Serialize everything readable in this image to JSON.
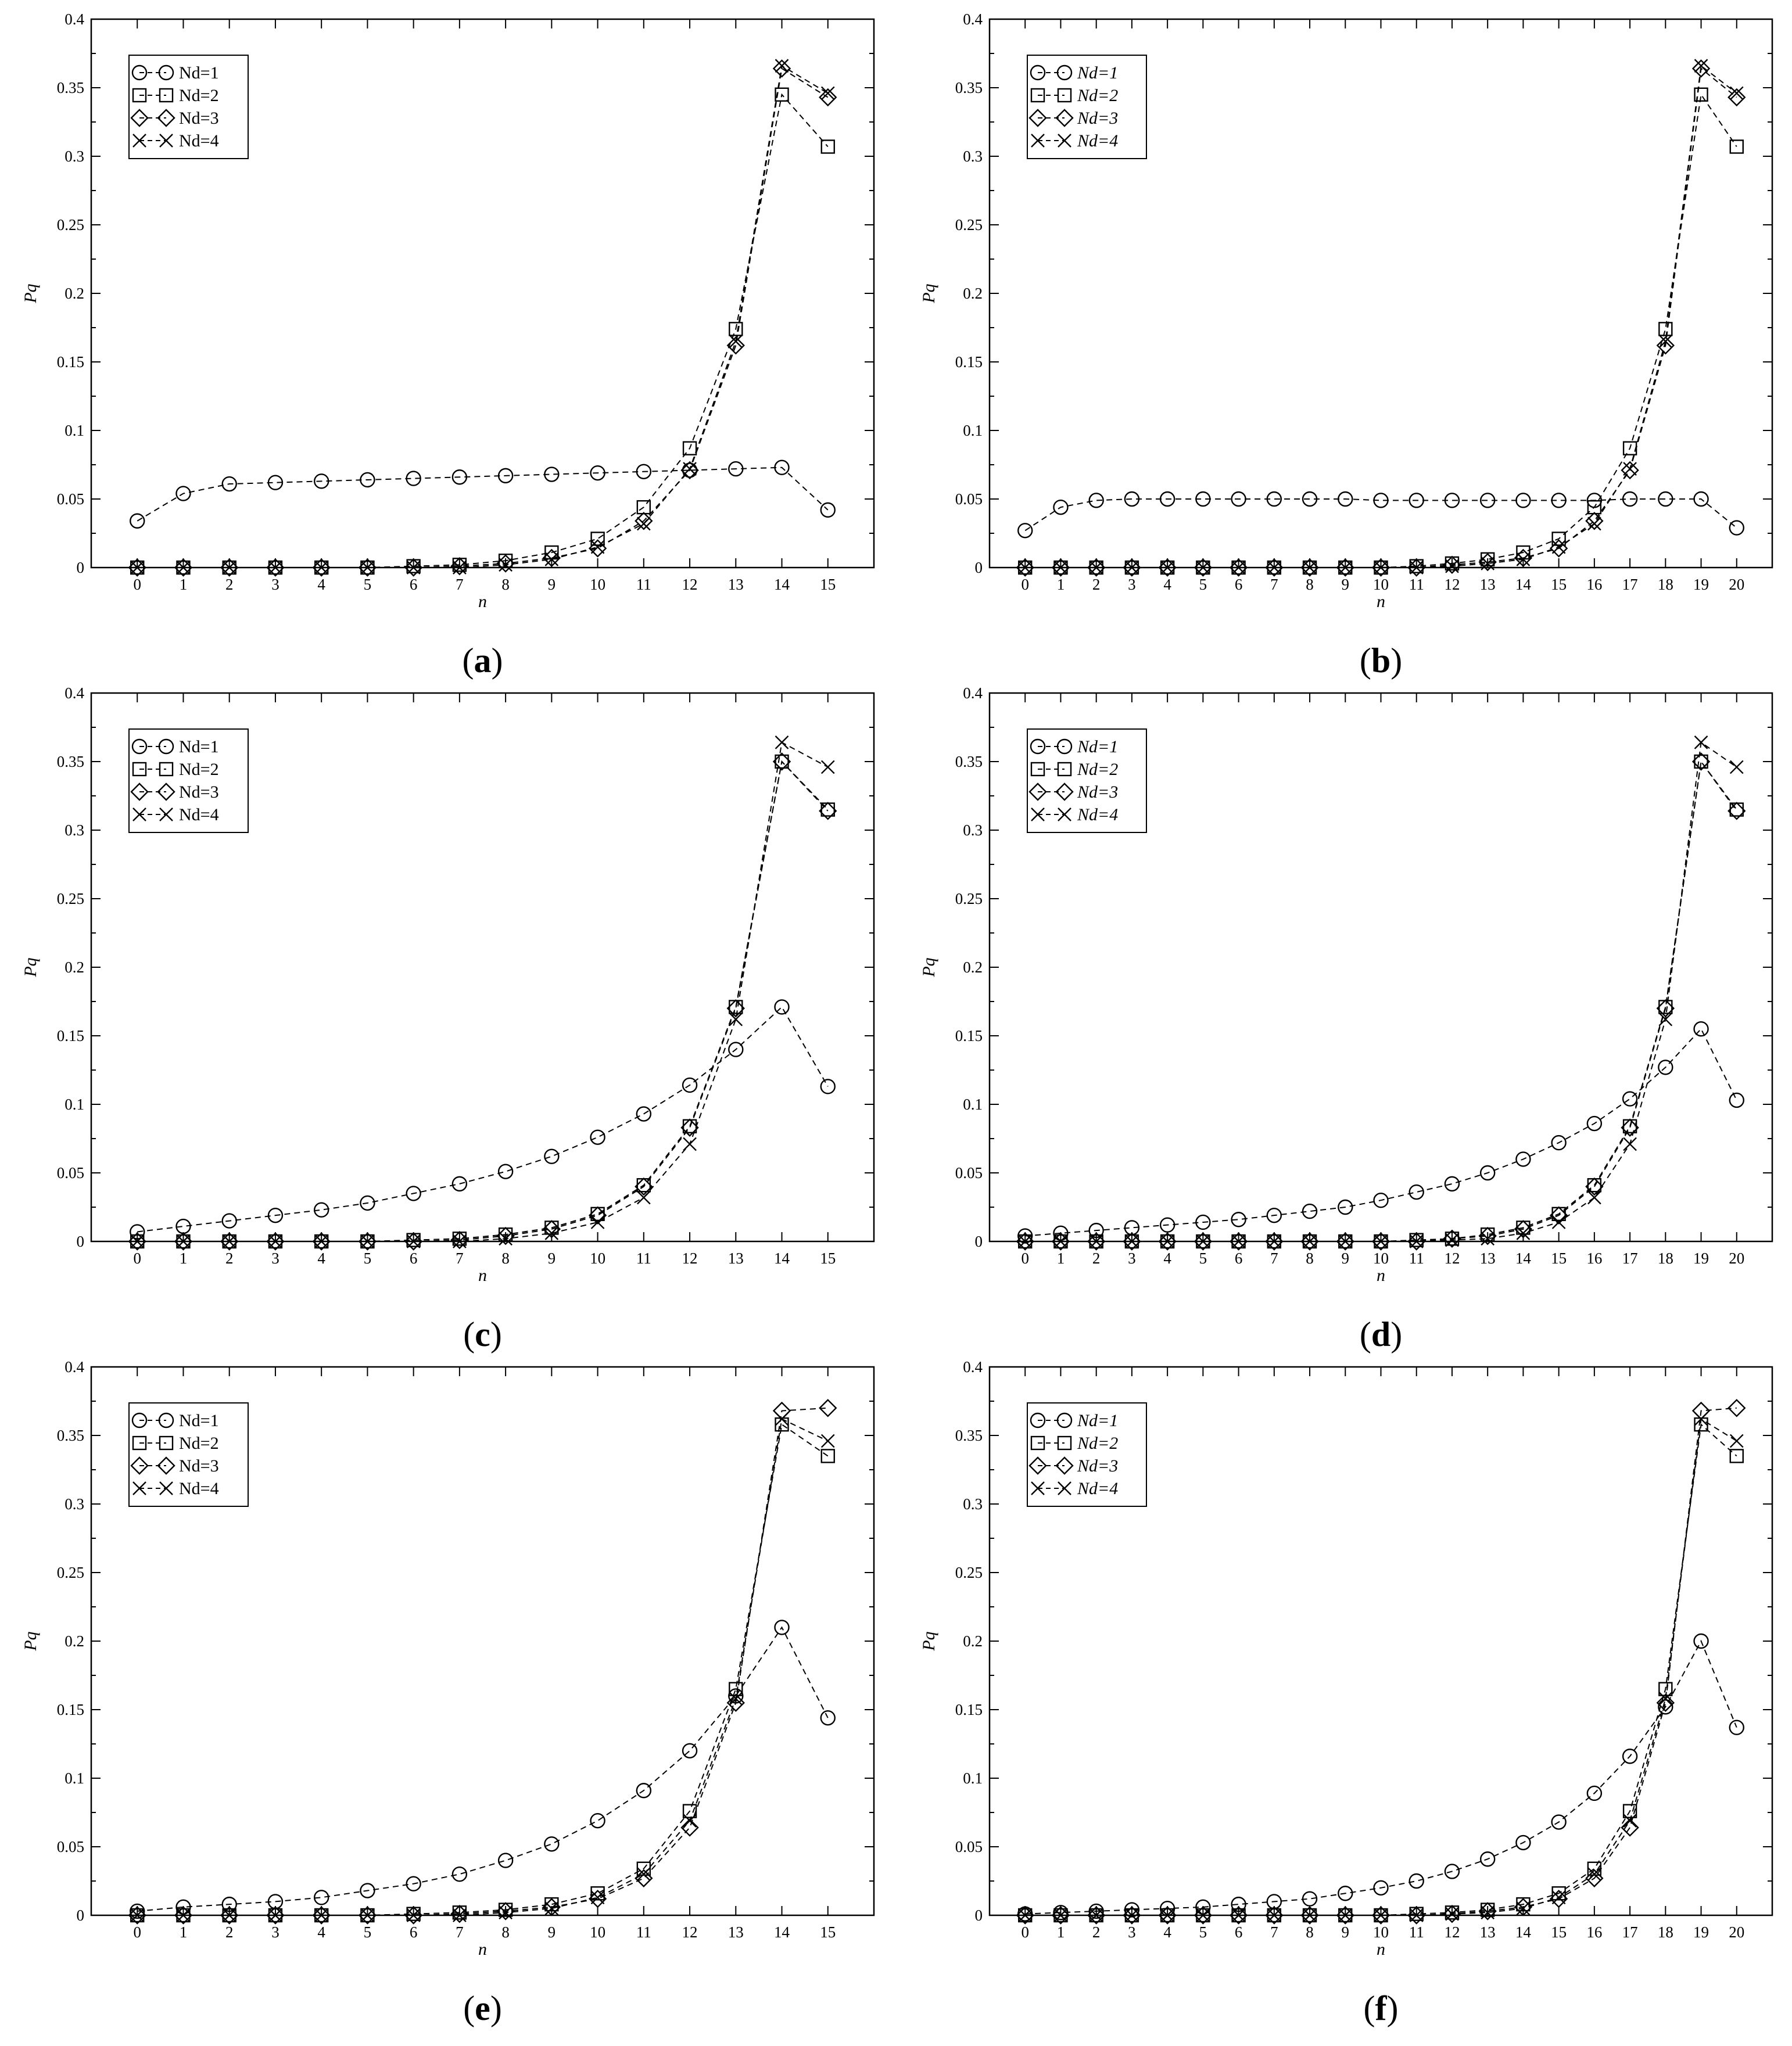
{
  "chart_data": [
    {
      "panel": "a",
      "type": "line",
      "caption": {
        "open": "(",
        "letter": "a",
        "close": ")"
      },
      "xlabel": "n",
      "ylabel": "Pq",
      "xlim": [
        -1,
        16
      ],
      "ylim": [
        0,
        0.4
      ],
      "x_ticks": [
        0,
        1,
        2,
        3,
        4,
        5,
        6,
        7,
        8,
        9,
        10,
        11,
        12,
        13,
        14,
        15
      ],
      "y_ticks": [
        "0",
        "0.05",
        "0.1",
        "0.15",
        "0.2",
        "0.25",
        "0.3",
        "0.35",
        "0.4"
      ],
      "legend_position": "top-left",
      "legend_italic": false,
      "series": [
        {
          "name": "Nd=1",
          "marker": "circle",
          "values": [
            0.034,
            0.054,
            0.061,
            0.062,
            0.063,
            0.064,
            0.065,
            0.066,
            0.067,
            0.068,
            0.069,
            0.07,
            0.071,
            0.072,
            0.073,
            0.042
          ]
        },
        {
          "name": "Nd=2",
          "marker": "square",
          "values": [
            0,
            0,
            0,
            0,
            0,
            0,
            0.001,
            0.002,
            0.005,
            0.011,
            0.021,
            0.044,
            0.087,
            0.174,
            0.345,
            0.307
          ]
        },
        {
          "name": "Nd=3",
          "marker": "diamond",
          "values": [
            0,
            0,
            0,
            0,
            0,
            0,
            0,
            0.001,
            0.003,
            0.007,
            0.014,
            0.034,
            0.071,
            0.162,
            0.364,
            0.343
          ]
        },
        {
          "name": "Nd=4",
          "marker": "x",
          "values": [
            0,
            0,
            0,
            0,
            0,
            0,
            0,
            0,
            0.002,
            0.006,
            0.015,
            0.032,
            0.072,
            0.165,
            0.366,
            0.346
          ]
        }
      ]
    },
    {
      "panel": "b",
      "type": "line",
      "caption": {
        "open": "(",
        "letter": "b",
        "close": ")"
      },
      "xlabel": "n",
      "ylabel": "Pq",
      "xlim": [
        -1,
        21
      ],
      "ylim": [
        0,
        0.4
      ],
      "x_ticks": [
        0,
        1,
        2,
        3,
        4,
        5,
        6,
        7,
        8,
        9,
        10,
        11,
        12,
        13,
        14,
        15,
        16,
        17,
        18,
        19,
        20
      ],
      "y_ticks": [
        "0",
        "0.05",
        "0.1",
        "0.15",
        "0.2",
        "0.25",
        "0.3",
        "0.35",
        "0.4"
      ],
      "legend_position": "top-left",
      "legend_italic": true,
      "series": [
        {
          "name": "Nd=1",
          "marker": "circle",
          "values": [
            0.027,
            0.044,
            0.049,
            0.05,
            0.05,
            0.05,
            0.05,
            0.05,
            0.05,
            0.05,
            0.049,
            0.049,
            0.049,
            0.049,
            0.049,
            0.049,
            0.049,
            0.05,
            0.05,
            0.05,
            0.029
          ]
        },
        {
          "name": "Nd=2",
          "marker": "square",
          "values": [
            0,
            0,
            0,
            0,
            0,
            0,
            0,
            0,
            0,
            0,
            0,
            0.001,
            0.003,
            0.006,
            0.011,
            0.021,
            0.044,
            0.087,
            0.174,
            0.345,
            0.307
          ]
        },
        {
          "name": "Nd=3",
          "marker": "diamond",
          "values": [
            0,
            0,
            0,
            0,
            0,
            0,
            0,
            0,
            0,
            0,
            0,
            0,
            0.002,
            0.004,
            0.007,
            0.014,
            0.034,
            0.071,
            0.162,
            0.364,
            0.343
          ]
        },
        {
          "name": "Nd=4",
          "marker": "x",
          "values": [
            0,
            0,
            0,
            0,
            0,
            0,
            0,
            0,
            0,
            0,
            0,
            0,
            0.001,
            0.003,
            0.006,
            0.015,
            0.032,
            0.072,
            0.165,
            0.366,
            0.346
          ]
        }
      ]
    },
    {
      "panel": "c",
      "type": "line",
      "caption": {
        "open": "(",
        "letter": "c",
        "close": ")"
      },
      "xlabel": "n",
      "ylabel": "Pq",
      "xlim": [
        -1,
        16
      ],
      "ylim": [
        0,
        0.4
      ],
      "x_ticks": [
        0,
        1,
        2,
        3,
        4,
        5,
        6,
        7,
        8,
        9,
        10,
        11,
        12,
        13,
        14,
        15
      ],
      "y_ticks": [
        "0",
        "0.05",
        "0.1",
        "0.15",
        "0.2",
        "0.25",
        "0.3",
        "0.35",
        "0.4"
      ],
      "legend_position": "top-left",
      "legend_italic": false,
      "series": [
        {
          "name": "Nd=1",
          "marker": "circle",
          "values": [
            0.007,
            0.011,
            0.015,
            0.019,
            0.023,
            0.028,
            0.035,
            0.042,
            0.051,
            0.062,
            0.076,
            0.093,
            0.114,
            0.14,
            0.171,
            0.113
          ]
        },
        {
          "name": "Nd=2",
          "marker": "square",
          "values": [
            0,
            0,
            0,
            0,
            0,
            0,
            0.001,
            0.002,
            0.005,
            0.01,
            0.02,
            0.041,
            0.084,
            0.171,
            0.35,
            0.315
          ]
        },
        {
          "name": "Nd=3",
          "marker": "diamond",
          "values": [
            0,
            0,
            0,
            0,
            0,
            0,
            0,
            0.001,
            0.004,
            0.009,
            0.019,
            0.04,
            0.083,
            0.17,
            0.35,
            0.314
          ]
        },
        {
          "name": "Nd=4",
          "marker": "x",
          "values": [
            0,
            0,
            0,
            0,
            0,
            0,
            0,
            0,
            0.002,
            0.006,
            0.014,
            0.032,
            0.071,
            0.162,
            0.364,
            0.346
          ]
        }
      ]
    },
    {
      "panel": "d",
      "type": "line",
      "caption": {
        "open": "(",
        "letter": "d",
        "close": ")"
      },
      "xlabel": "n",
      "ylabel": "Pq",
      "xlim": [
        -1,
        21
      ],
      "ylim": [
        0,
        0.4
      ],
      "x_ticks": [
        0,
        1,
        2,
        3,
        4,
        5,
        6,
        7,
        8,
        9,
        10,
        11,
        12,
        13,
        14,
        15,
        16,
        17,
        18,
        19,
        20
      ],
      "y_ticks": [
        "0",
        "0.05",
        "0.1",
        "0.15",
        "0.2",
        "0.25",
        "0.3",
        "0.35",
        "0.4"
      ],
      "legend_position": "top-left",
      "legend_italic": true,
      "series": [
        {
          "name": "Nd=1",
          "marker": "circle",
          "values": [
            0.004,
            0.006,
            0.008,
            0.01,
            0.012,
            0.014,
            0.016,
            0.019,
            0.022,
            0.025,
            0.03,
            0.036,
            0.042,
            0.05,
            0.06,
            0.072,
            0.086,
            0.104,
            0.127,
            0.155,
            0.103
          ]
        },
        {
          "name": "Nd=2",
          "marker": "square",
          "values": [
            0,
            0,
            0,
            0,
            0,
            0,
            0,
            0,
            0,
            0,
            0,
            0.001,
            0.002,
            0.005,
            0.01,
            0.02,
            0.041,
            0.084,
            0.171,
            0.35,
            0.315
          ]
        },
        {
          "name": "Nd=3",
          "marker": "diamond",
          "values": [
            0,
            0,
            0,
            0,
            0,
            0,
            0,
            0,
            0,
            0,
            0,
            0,
            0.002,
            0.004,
            0.009,
            0.019,
            0.04,
            0.083,
            0.17,
            0.35,
            0.314
          ]
        },
        {
          "name": "Nd=4",
          "marker": "x",
          "values": [
            0,
            0,
            0,
            0,
            0,
            0,
            0,
            0,
            0,
            0,
            0,
            0,
            0.001,
            0.002,
            0.006,
            0.014,
            0.032,
            0.071,
            0.162,
            0.364,
            0.346
          ]
        }
      ]
    },
    {
      "panel": "e",
      "type": "line",
      "caption": {
        "open": "(",
        "letter": "e",
        "close": ")"
      },
      "xlabel": "n",
      "ylabel": "Pq",
      "xlim": [
        -1,
        16
      ],
      "ylim": [
        0,
        0.4
      ],
      "x_ticks": [
        0,
        1,
        2,
        3,
        4,
        5,
        6,
        7,
        8,
        9,
        10,
        11,
        12,
        13,
        14,
        15
      ],
      "y_ticks": [
        "0",
        "0.05",
        "0.1",
        "0.15",
        "0.2",
        "0.25",
        "0.3",
        "0.35",
        "0.4"
      ],
      "legend_position": "top-left",
      "legend_italic": false,
      "series": [
        {
          "name": "Nd=1",
          "marker": "circle",
          "values": [
            0.003,
            0.006,
            0.008,
            0.01,
            0.013,
            0.018,
            0.023,
            0.03,
            0.04,
            0.052,
            0.069,
            0.091,
            0.12,
            0.16,
            0.21,
            0.144
          ]
        },
        {
          "name": "Nd=2",
          "marker": "square",
          "values": [
            0,
            0,
            0,
            0,
            0,
            0,
            0.001,
            0.002,
            0.004,
            0.008,
            0.016,
            0.034,
            0.076,
            0.165,
            0.358,
            0.335
          ]
        },
        {
          "name": "Nd=3",
          "marker": "diamond",
          "values": [
            0,
            0,
            0,
            0,
            0,
            0,
            0,
            0.001,
            0.003,
            0.006,
            0.012,
            0.027,
            0.064,
            0.155,
            0.368,
            0.37
          ]
        },
        {
          "name": "Nd=4",
          "marker": "x",
          "values": [
            0,
            0,
            0,
            0,
            0,
            0,
            0,
            0,
            0.002,
            0.005,
            0.013,
            0.03,
            0.069,
            0.158,
            0.362,
            0.346
          ]
        }
      ]
    },
    {
      "panel": "f",
      "type": "line",
      "caption": {
        "open": "(",
        "letter": "f",
        "close": ")"
      },
      "xlabel": "n",
      "ylabel": "Pq",
      "xlim": [
        -1,
        21
      ],
      "ylim": [
        0,
        0.4
      ],
      "x_ticks": [
        0,
        1,
        2,
        3,
        4,
        5,
        6,
        7,
        8,
        9,
        10,
        11,
        12,
        13,
        14,
        15,
        16,
        17,
        18,
        19,
        20
      ],
      "y_ticks": [
        "0",
        "0.05",
        "0.1",
        "0.15",
        "0.2",
        "0.25",
        "0.3",
        "0.35",
        "0.4"
      ],
      "legend_position": "top-left",
      "legend_italic": true,
      "series": [
        {
          "name": "Nd=1",
          "marker": "circle",
          "values": [
            0.001,
            0.002,
            0.003,
            0.004,
            0.005,
            0.006,
            0.008,
            0.01,
            0.012,
            0.016,
            0.02,
            0.025,
            0.032,
            0.041,
            0.053,
            0.068,
            0.089,
            0.116,
            0.152,
            0.2,
            0.137
          ]
        },
        {
          "name": "Nd=2",
          "marker": "square",
          "values": [
            0,
            0,
            0,
            0,
            0,
            0,
            0,
            0,
            0,
            0,
            0,
            0.001,
            0.002,
            0.004,
            0.008,
            0.016,
            0.034,
            0.076,
            0.165,
            0.358,
            0.335
          ]
        },
        {
          "name": "Nd=3",
          "marker": "diamond",
          "values": [
            0,
            0,
            0,
            0,
            0,
            0,
            0,
            0,
            0,
            0,
            0,
            0,
            0.001,
            0.003,
            0.006,
            0.012,
            0.027,
            0.064,
            0.155,
            0.368,
            0.37
          ]
        },
        {
          "name": "Nd=4",
          "marker": "x",
          "values": [
            0,
            0,
            0,
            0,
            0,
            0,
            0,
            0,
            0,
            0,
            0,
            0,
            0.001,
            0.002,
            0.005,
            0.013,
            0.03,
            0.069,
            0.158,
            0.362,
            0.346
          ]
        }
      ]
    }
  ]
}
